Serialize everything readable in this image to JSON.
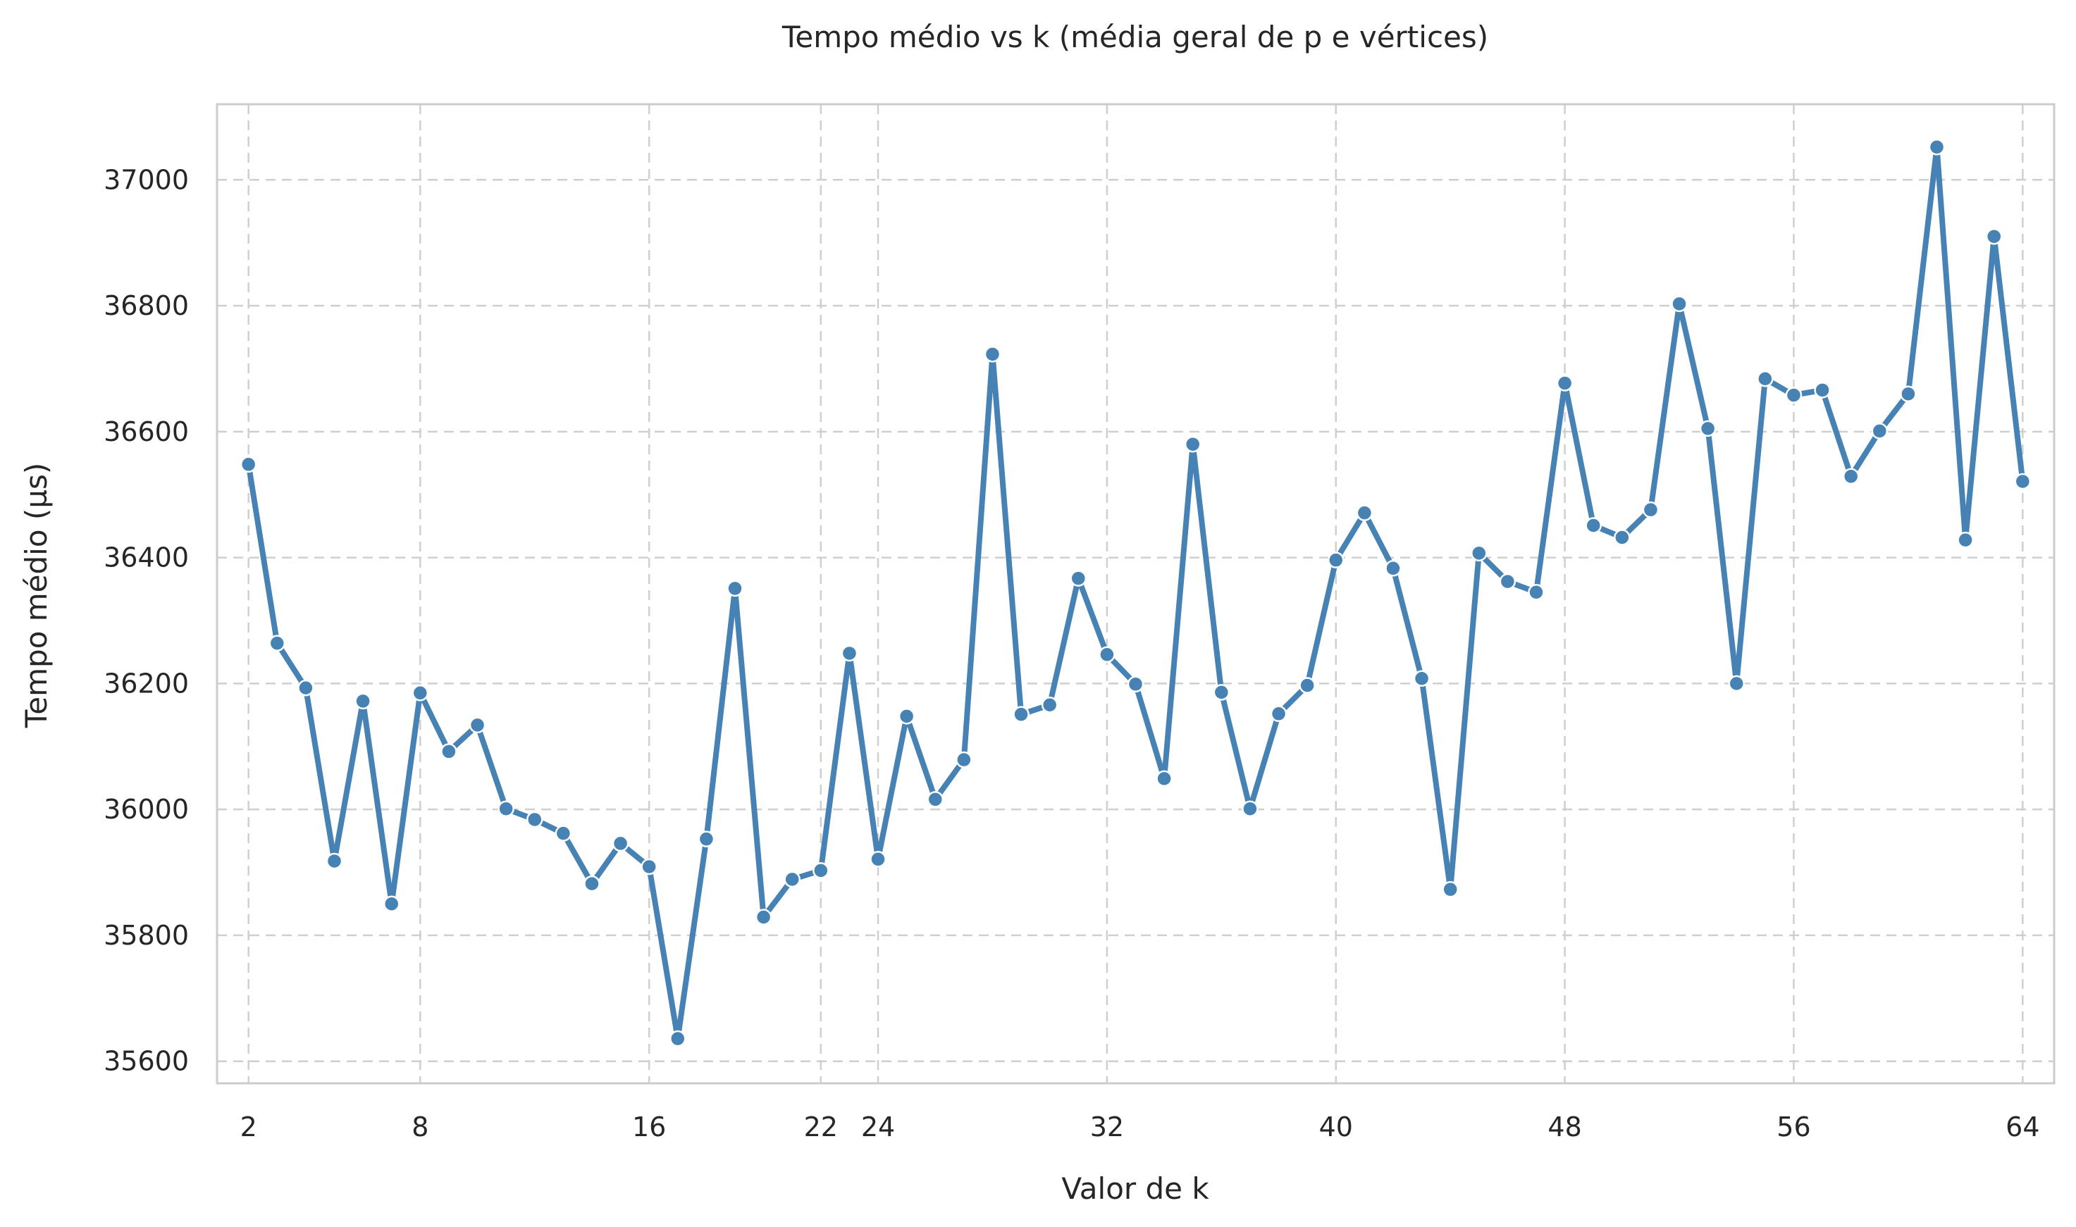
{
  "chart_data": {
    "type": "line",
    "title": "Tempo médio vs k (média geral de p e vértices)",
    "xlabel": "Valor de k",
    "ylabel": "Tempo médio (µs)",
    "xlim": [
      0.9,
      65.1
    ],
    "ylim": [
      35565,
      37120
    ],
    "xticks": [
      2,
      8,
      16,
      22,
      24,
      32,
      40,
      48,
      56,
      64
    ],
    "yticks": [
      35600,
      35800,
      36000,
      36200,
      36400,
      36600,
      36800,
      37000
    ],
    "grid": true,
    "grid_style": "dashed",
    "color": "#4682b4",
    "series": [
      {
        "x": [
          2,
          3,
          4,
          5,
          6,
          7,
          8,
          9,
          10,
          11,
          12,
          13,
          14,
          15,
          16,
          17,
          18,
          19,
          20,
          21,
          22,
          23,
          24,
          25,
          26,
          27,
          28,
          29,
          30,
          31,
          32,
          33,
          34,
          35,
          36,
          37,
          38,
          39,
          40,
          41,
          42,
          43,
          44,
          45,
          46,
          47,
          48,
          49,
          50,
          51,
          52,
          53,
          54,
          55,
          56,
          57,
          58,
          59,
          60,
          61,
          62,
          63,
          64
        ],
        "values": [
          36548,
          36264,
          36193,
          35918,
          36172,
          35850,
          36185,
          36092,
          36134,
          36001,
          35984,
          35962,
          35882,
          35946,
          35909,
          35636,
          35953,
          36351,
          35829,
          35889,
          35903,
          36248,
          35921,
          36148,
          36016,
          36079,
          36723,
          36151,
          36166,
          36367,
          36246,
          36199,
          36049,
          36580,
          36186,
          36001,
          36152,
          36197,
          36396,
          36471,
          36383,
          36208,
          35873,
          36407,
          36362,
          36345,
          36677,
          36451,
          36432,
          36476,
          36803,
          36605,
          36200,
          36684,
          36658,
          36666,
          36529,
          36601,
          36660,
          37052,
          36428,
          36910,
          36521
        ]
      }
    ]
  }
}
